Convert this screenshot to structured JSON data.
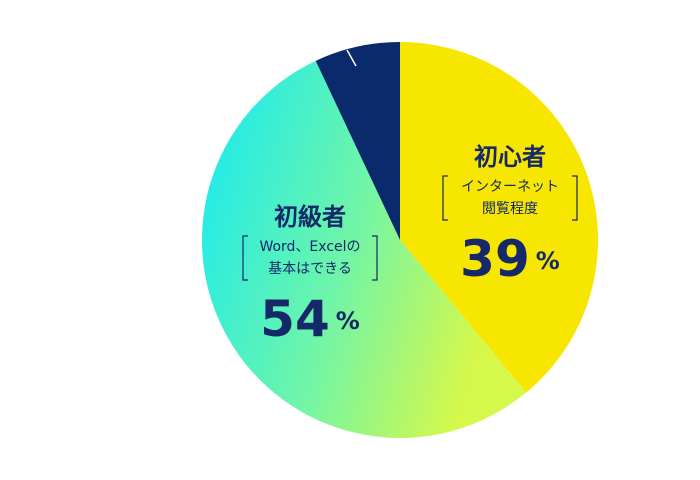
{
  "chart_data": {
    "type": "pie",
    "categories": [
      "初心者",
      "初級者",
      null
    ],
    "descriptions": [
      [
        "インターネット",
        "閲覧程度"
      ],
      [
        "Word、Excelの",
        "基本はできる"
      ],
      null
    ],
    "values": [
      39,
      54,
      7
    ],
    "value_labels": [
      "39%",
      "54%",
      null
    ],
    "colors": [
      "#f7e600",
      "gradient",
      "#0b2a6c"
    ]
  }
}
